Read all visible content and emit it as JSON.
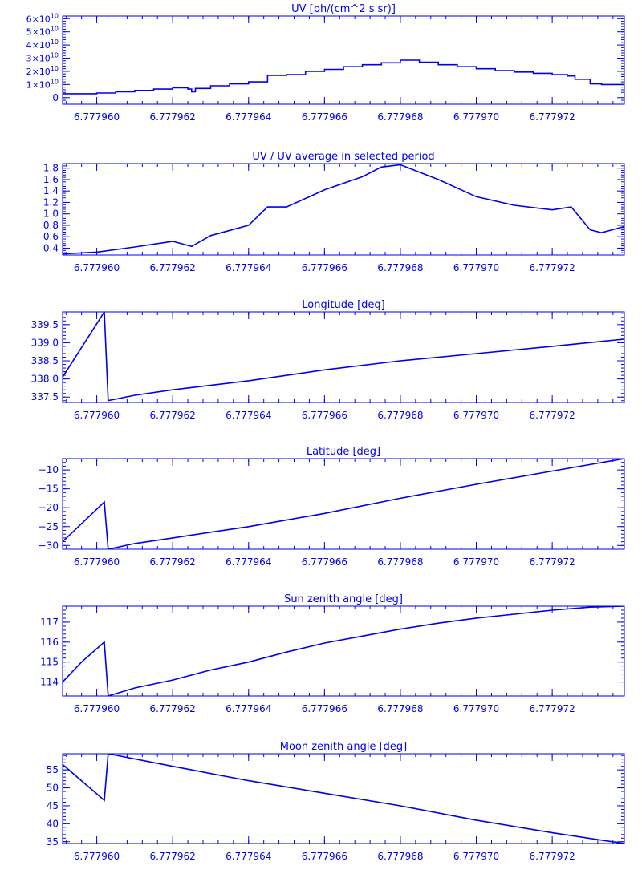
{
  "line_color": "#0000ee",
  "background": "#ffffff",
  "chart_data": [
    {
      "type": "line",
      "title": "UV [ph/(cm^2 s sr)]",
      "xlim": [
        6.7779591,
        6.7779739
      ],
      "ylim": [
        -5000000000.0,
        62000000000.0
      ],
      "xticks": [
        6.77796,
        6.777962,
        6.777964,
        6.777966,
        6.777968,
        6.77797,
        6.777972
      ],
      "xtick_labels": [
        "6.777960",
        "6.777962",
        "6.777964",
        "6.777966",
        "6.777968",
        "6.777970",
        "6.777972"
      ],
      "yticks": [
        0,
        10000000000.0,
        20000000000.0,
        30000000000.0,
        40000000000.0,
        50000000000.0,
        60000000000.0
      ],
      "ytick_labels": [
        {
          "m": "0",
          "e": ""
        },
        {
          "m": "1×10",
          "e": "10"
        },
        {
          "m": "2×10",
          "e": "10"
        },
        {
          "m": "3×10",
          "e": "10"
        },
        {
          "m": "4×10",
          "e": "10"
        },
        {
          "m": "5×10",
          "e": "10"
        },
        {
          "m": "6×10",
          "e": "10"
        }
      ],
      "series": [
        {
          "step": true,
          "x": [
            6.7779591,
            6.77796,
            6.7779605,
            6.777961,
            6.7779615,
            6.777962,
            6.7779624,
            6.7779625,
            6.7779626,
            6.777963,
            6.7779635,
            6.777964,
            6.7779645,
            6.777965,
            6.7779655,
            6.777966,
            6.7779665,
            6.777967,
            6.7779675,
            6.777968,
            6.7779685,
            6.777969,
            6.7779695,
            6.77797,
            6.7779705,
            6.777971,
            6.7779715,
            6.777972,
            6.7779724,
            6.7779726,
            6.777973,
            6.7779733,
            6.7779739
          ],
          "y": [
            3000000000.0,
            3500000000.0,
            4500000000.0,
            5500000000.0,
            6500000000.0,
            7500000000.0,
            6500000000.0,
            4500000000.0,
            7000000000.0,
            9000000000.0,
            10500000000.0,
            12000000000.0,
            17000000000.0,
            17500000000.0,
            20000000000.0,
            21500000000.0,
            23500000000.0,
            25000000000.0,
            26500000000.0,
            28500000000.0,
            27000000000.0,
            25000000000.0,
            23500000000.0,
            22000000000.0,
            20500000000.0,
            19500000000.0,
            18500000000.0,
            17500000000.0,
            16500000000.0,
            14000000000.0,
            10500000000.0,
            10000000000.0,
            11500000000.0
          ]
        }
      ]
    },
    {
      "type": "line",
      "title": "UV / UV average in selected period",
      "xlim": [
        6.7779591,
        6.7779739
      ],
      "ylim": [
        0.28,
        1.88
      ],
      "xticks": [
        6.77796,
        6.777962,
        6.777964,
        6.777966,
        6.777968,
        6.77797,
        6.777972
      ],
      "xtick_labels": [
        "6.777960",
        "6.777962",
        "6.777964",
        "6.777966",
        "6.777968",
        "6.777970",
        "6.777972"
      ],
      "yticks": [
        0.4,
        0.6,
        0.8,
        1.0,
        1.2,
        1.4,
        1.6,
        1.8
      ],
      "ytick_labels": [
        {
          "m": "0.4",
          "e": ""
        },
        {
          "m": "0.6",
          "e": ""
        },
        {
          "m": "0.8",
          "e": ""
        },
        {
          "m": "1.0",
          "e": ""
        },
        {
          "m": "1.2",
          "e": ""
        },
        {
          "m": "1.4",
          "e": ""
        },
        {
          "m": "1.6",
          "e": ""
        },
        {
          "m": "1.8",
          "e": ""
        }
      ],
      "series": [
        {
          "x": [
            6.7779591,
            6.77796,
            6.777961,
            6.777962,
            6.7779625,
            6.777963,
            6.777964,
            6.7779645,
            6.777965,
            6.777966,
            6.777967,
            6.7779675,
            6.777968,
            6.777969,
            6.77797,
            6.777971,
            6.777972,
            6.7779725,
            6.777973,
            6.7779733,
            6.7779739
          ],
          "y": [
            0.3,
            0.33,
            0.42,
            0.52,
            0.43,
            0.62,
            0.8,
            1.12,
            1.12,
            1.42,
            1.65,
            1.82,
            1.86,
            1.6,
            1.3,
            1.15,
            1.07,
            1.12,
            0.72,
            0.67,
            0.78
          ]
        }
      ]
    },
    {
      "type": "line",
      "title": "Longitude [deg]",
      "xlim": [
        6.7779591,
        6.7779739
      ],
      "ylim": [
        337.35,
        339.85
      ],
      "xticks": [
        6.77796,
        6.777962,
        6.777964,
        6.777966,
        6.777968,
        6.77797,
        6.777972
      ],
      "xtick_labels": [
        "6.777960",
        "6.777962",
        "6.777964",
        "6.777966",
        "6.777968",
        "6.777970",
        "6.777972"
      ],
      "yticks": [
        337.5,
        338.0,
        338.5,
        339.0,
        339.5
      ],
      "ytick_labels": [
        {
          "m": "337.5",
          "e": ""
        },
        {
          "m": "338.0",
          "e": ""
        },
        {
          "m": "338.5",
          "e": ""
        },
        {
          "m": "339.0",
          "e": ""
        },
        {
          "m": "339.5",
          "e": ""
        }
      ],
      "series": [
        {
          "x": [
            6.7779591,
            6.7779602,
            6.7779603,
            6.777961,
            6.777962,
            6.777964,
            6.777966,
            6.777968,
            6.77797,
            6.777972,
            6.7779739
          ],
          "y": [
            338.05,
            339.85,
            337.4,
            337.55,
            337.7,
            337.95,
            338.25,
            338.5,
            338.7,
            338.9,
            339.1
          ]
        }
      ]
    },
    {
      "type": "line",
      "title": "Latitude [deg]",
      "xlim": [
        6.7779591,
        6.7779739
      ],
      "ylim": [
        -31,
        -7
      ],
      "xticks": [
        6.77796,
        6.777962,
        6.777964,
        6.777966,
        6.777968,
        6.77797,
        6.777972
      ],
      "xtick_labels": [
        "6.777960",
        "6.777962",
        "6.777964",
        "6.777966",
        "6.777968",
        "6.777970",
        "6.777972"
      ],
      "yticks": [
        -30,
        -25,
        -20,
        -15,
        -10
      ],
      "ytick_labels": [
        {
          "m": "−30",
          "e": ""
        },
        {
          "m": "−25",
          "e": ""
        },
        {
          "m": "−20",
          "e": ""
        },
        {
          "m": "−15",
          "e": ""
        },
        {
          "m": "−10",
          "e": ""
        }
      ],
      "series": [
        {
          "x": [
            6.7779591,
            6.7779602,
            6.7779603,
            6.777961,
            6.777962,
            6.777964,
            6.777966,
            6.777968,
            6.77797,
            6.777972,
            6.7779739
          ],
          "y": [
            -29,
            -18.5,
            -31,
            -29.5,
            -28,
            -25,
            -21.5,
            -17.5,
            -13.8,
            -10.3,
            -7
          ]
        }
      ]
    },
    {
      "type": "line",
      "title": "Sun zenith angle [deg]",
      "xlim": [
        6.7779591,
        6.7779739
      ],
      "ylim": [
        113.3,
        117.8
      ],
      "xticks": [
        6.77796,
        6.777962,
        6.777964,
        6.777966,
        6.777968,
        6.77797,
        6.777972
      ],
      "xtick_labels": [
        "6.777960",
        "6.777962",
        "6.777964",
        "6.777966",
        "6.777968",
        "6.777970",
        "6.777972"
      ],
      "yticks": [
        114,
        115,
        116,
        117
      ],
      "ytick_labels": [
        {
          "m": "114",
          "e": ""
        },
        {
          "m": "115",
          "e": ""
        },
        {
          "m": "116",
          "e": ""
        },
        {
          "m": "117",
          "e": ""
        }
      ],
      "series": [
        {
          "x": [
            6.7779591,
            6.7779596,
            6.7779602,
            6.7779603,
            6.777961,
            6.777962,
            6.777963,
            6.777964,
            6.777965,
            6.777966,
            6.777967,
            6.777968,
            6.777969,
            6.77797,
            6.777971,
            6.777972,
            6.777973,
            6.7779739
          ],
          "y": [
            114.0,
            115.0,
            116.0,
            113.3,
            113.7,
            114.1,
            114.6,
            115.0,
            115.5,
            115.95,
            116.3,
            116.65,
            116.95,
            117.2,
            117.4,
            117.6,
            117.75,
            117.8
          ]
        }
      ]
    },
    {
      "type": "line",
      "title": "Moon zenith angle [deg]",
      "xlim": [
        6.7779591,
        6.7779739
      ],
      "ylim": [
        34.5,
        59.5
      ],
      "xticks": [
        6.77796,
        6.777962,
        6.777964,
        6.777966,
        6.777968,
        6.77797,
        6.777972
      ],
      "xtick_labels": [
        "6.777960",
        "6.777962",
        "6.777964",
        "6.777966",
        "6.777968",
        "6.777970",
        "6.777972"
      ],
      "yticks": [
        35,
        40,
        45,
        50,
        55
      ],
      "ytick_labels": [
        {
          "m": "35",
          "e": ""
        },
        {
          "m": "40",
          "e": ""
        },
        {
          "m": "45",
          "e": ""
        },
        {
          "m": "50",
          "e": ""
        },
        {
          "m": "55",
          "e": ""
        }
      ],
      "series": [
        {
          "x": [
            6.7779591,
            6.7779602,
            6.7779603,
            6.777962,
            6.777964,
            6.777966,
            6.777968,
            6.77797,
            6.777972,
            6.7779739
          ],
          "y": [
            56.5,
            46.5,
            59.5,
            56,
            52,
            48.5,
            45,
            41,
            37.5,
            34.5
          ]
        }
      ]
    }
  ]
}
